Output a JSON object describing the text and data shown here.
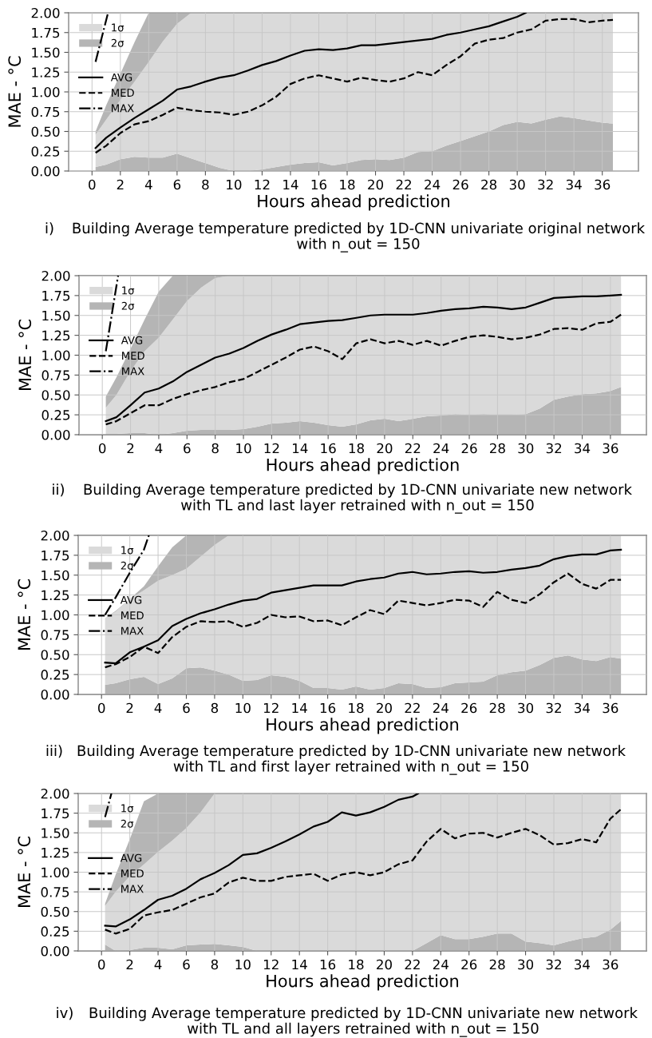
{
  "chart_data": [
    {
      "type": "area",
      "stacked": true,
      "xlabel": "Hours ahead prediction",
      "ylabel": "MAE - °C",
      "annotations": [
        "i)",
        "Building Average temperature predicted by 1D-CNN univariate original network\nwith n_out = 150"
      ],
      "x": [
        0.25,
        1,
        2,
        3,
        4,
        5,
        6,
        7,
        8,
        9,
        10,
        11,
        12,
        13,
        14,
        15,
        16,
        17,
        18,
        19,
        20,
        21,
        22,
        23,
        24,
        25,
        26,
        27,
        28,
        29,
        30,
        31,
        32,
        33,
        34,
        35,
        36,
        36.75
      ],
      "xlim": [
        -1.65,
        38.55
      ],
      "xticks": [
        0,
        2,
        4,
        6,
        8,
        10,
        12,
        14,
        16,
        18,
        20,
        22,
        24,
        26,
        28,
        30,
        32,
        34,
        36
      ],
      "ylim": [
        0,
        2
      ],
      "yticks": [
        {
          "value": 0,
          "label": "0.00"
        },
        0.25,
        {
          "value": 0.5,
          "label": "0.50"
        },
        0.75,
        {
          "value": 1,
          "label": "1.00"
        },
        1.25,
        {
          "value": 1.5,
          "label": "1.50"
        },
        1.75,
        {
          "value": 2,
          "label": "2.00"
        }
      ],
      "grid": true,
      "legend": "top left",
      "series": [
        {
          "name": "2σ",
          "color": "#b5b5b5",
          "values": [
            0.05,
            0.08,
            0.15,
            0.18,
            0.17,
            0.17,
            0.22,
            0.16,
            0.1,
            0.04,
            0,
            0,
            0.02,
            0.05,
            0.08,
            0.1,
            0.11,
            0.07,
            0.1,
            0.14,
            0.15,
            0.14,
            0.17,
            0.24,
            0.25,
            0.32,
            0.38,
            0.44,
            0.5,
            0.58,
            0.62,
            0.6,
            0.65,
            0.69,
            0.67,
            0.64,
            0.61,
            0.6
          ]
        },
        {
          "name": "1σ",
          "color": "#dadada",
          "values": [
            0.41,
            0.57,
            0.75,
            0.95,
            1.21,
            1.47,
            1.64,
            1.84,
            1.9,
            1.96,
            2,
            2,
            1.98,
            1.95,
            1.92,
            1.9,
            1.89,
            1.93,
            1.9,
            1.86,
            1.85,
            1.86,
            1.83,
            1.76,
            1.75,
            1.68,
            1.62,
            1.56,
            1.5,
            1.42,
            1.38,
            1.4,
            1.35,
            1.31,
            1.33,
            1.36,
            1.39,
            1.4
          ]
        },
        {
          "color": "#b5b5b5",
          "values": [
            0.04,
            0.18,
            0.33,
            0.5,
            0.62,
            0.36,
            0.14,
            0,
            null,
            null,
            null,
            null,
            null,
            null,
            null,
            null,
            null,
            null,
            null,
            null,
            null,
            null,
            null,
            null,
            null,
            null,
            null,
            null,
            null,
            null,
            null,
            null,
            null,
            null,
            null,
            null,
            null,
            null
          ]
        },
        {
          "name": "AVG",
          "type": "line",
          "color": "#000000",
          "line_style": "solid",
          "x": [
            0.25,
            1,
            2,
            3,
            4,
            5,
            6,
            7,
            8,
            9,
            10,
            11,
            12,
            13,
            14,
            15,
            16,
            17,
            18,
            19,
            20,
            21,
            22,
            23,
            24,
            25,
            26,
            27,
            28,
            29,
            30,
            30.6
          ],
          "values": [
            0.29,
            0.42,
            0.55,
            0.67,
            0.78,
            0.89,
            1.03,
            1.07,
            1.13,
            1.18,
            1.21,
            1.27,
            1.34,
            1.39,
            1.46,
            1.52,
            1.54,
            1.53,
            1.55,
            1.59,
            1.59,
            1.61,
            1.63,
            1.65,
            1.67,
            1.72,
            1.75,
            1.79,
            1.83,
            1.89,
            1.95,
            2
          ]
        },
        {
          "name": "MED",
          "type": "line",
          "color": "#000000",
          "line_style": "dashed",
          "values": [
            0.23,
            0.32,
            0.48,
            0.59,
            0.63,
            0.71,
            0.8,
            0.77,
            0.75,
            0.74,
            0.71,
            0.75,
            0.83,
            0.94,
            1.1,
            1.17,
            1.21,
            1.17,
            1.13,
            1.18,
            1.15,
            1.13,
            1.17,
            1.25,
            1.21,
            1.34,
            1.45,
            1.61,
            1.66,
            1.68,
            1.75,
            1.79,
            1.9,
            1.92,
            1.92,
            1.88,
            1.9,
            1.91
          ]
        },
        {
          "name": "MAX",
          "type": "line",
          "color": "#000000",
          "line_style": "dashdot",
          "x": [
            0.25,
            1.13
          ],
          "values": [
            1.38,
            2
          ]
        }
      ]
    },
    {
      "type": "area",
      "stacked": true,
      "xlabel": "Hours ahead prediction",
      "ylabel": "MAE - °C",
      "annotations": [
        "ii)",
        "Building Average temperature predicted by 1D-CNN univariate new network\nwith TL and last layer retrained with n_out = 150"
      ],
      "x": [
        0.25,
        1,
        2,
        3,
        4,
        5,
        6,
        7,
        8,
        9,
        10,
        11,
        12,
        13,
        14,
        15,
        16,
        17,
        18,
        19,
        20,
        21,
        22,
        23,
        24,
        25,
        26,
        27,
        28,
        29,
        30,
        31,
        32,
        33,
        34,
        35,
        36,
        36.75
      ],
      "xlim": [
        -1.65,
        38.55
      ],
      "xticks": [
        0,
        2,
        4,
        6,
        8,
        10,
        12,
        14,
        16,
        18,
        20,
        22,
        24,
        26,
        28,
        30,
        32,
        34,
        36
      ],
      "ylim": [
        0,
        2
      ],
      "yticks": [
        {
          "value": 0,
          "label": "0.00"
        },
        0.25,
        {
          "value": 0.5,
          "label": "0.50"
        },
        0.75,
        {
          "value": 1,
          "label": "1.00"
        },
        1.25,
        {
          "value": 1.5,
          "label": "1.50"
        },
        1.75,
        {
          "value": 2,
          "label": "2.00"
        }
      ],
      "grid": true,
      "legend": "top left",
      "series": [
        {
          "name": "2σ",
          "color": "#b5b5b5",
          "values": [
            0.01,
            0.01,
            0.02,
            0.02,
            0,
            0.02,
            0.05,
            0.06,
            0.06,
            0.06,
            0.07,
            0.1,
            0.14,
            0.15,
            0.17,
            0.15,
            0.12,
            0.1,
            0.13,
            0.18,
            0.2,
            0.17,
            0.2,
            0.23,
            0.24,
            0.26,
            0.25,
            0.26,
            0.25,
            0.25,
            0.26,
            0.33,
            0.44,
            0.48,
            0.51,
            0.52,
            0.55,
            0.6
          ]
        },
        {
          "name": "1σ",
          "color": "#dadada",
          "values": [
            0.33,
            0.49,
            0.78,
            1.03,
            1.22,
            1.43,
            1.63,
            1.79,
            1.91,
            1.94,
            1.93,
            1.9,
            1.86,
            1.85,
            1.83,
            1.85,
            1.88,
            1.9,
            1.87,
            1.82,
            1.8,
            1.83,
            1.8,
            1.77,
            1.76,
            1.74,
            1.75,
            1.74,
            1.75,
            1.75,
            1.74,
            1.67,
            1.56,
            1.52,
            1.49,
            1.48,
            1.45,
            1.4
          ]
        },
        {
          "color": "#b5b5b5",
          "values": [
            0.14,
            0.22,
            0.28,
            0.4,
            0.58,
            0.55,
            0.32,
            0.15,
            0.03,
            0,
            null,
            null,
            null,
            null,
            null,
            null,
            null,
            null,
            null,
            null,
            null,
            null,
            null,
            null,
            null,
            null,
            null,
            null,
            null,
            null,
            null,
            null,
            null,
            null,
            null,
            null,
            null,
            null
          ]
        },
        {
          "name": "AVG",
          "type": "line",
          "color": "#000000",
          "line_style": "solid",
          "values": [
            0.17,
            0.22,
            0.37,
            0.53,
            0.58,
            0.67,
            0.79,
            0.88,
            0.97,
            1.02,
            1.09,
            1.18,
            1.26,
            1.32,
            1.39,
            1.41,
            1.43,
            1.44,
            1.47,
            1.5,
            1.51,
            1.51,
            1.51,
            1.53,
            1.56,
            1.58,
            1.59,
            1.61,
            1.6,
            1.58,
            1.6,
            1.66,
            1.72,
            1.73,
            1.74,
            1.74,
            1.75,
            1.76
          ]
        },
        {
          "name": "MED",
          "type": "line",
          "color": "#000000",
          "line_style": "dashed",
          "values": [
            0.13,
            0.17,
            0.27,
            0.37,
            0.37,
            0.45,
            0.51,
            0.56,
            0.6,
            0.66,
            0.7,
            0.79,
            0.88,
            0.97,
            1.07,
            1.11,
            1.05,
            0.95,
            1.15,
            1.2,
            1.15,
            1.18,
            1.13,
            1.18,
            1.12,
            1.18,
            1.23,
            1.25,
            1.23,
            1.2,
            1.22,
            1.26,
            1.33,
            1.34,
            1.32,
            1.4,
            1.42,
            1.51
          ]
        },
        {
          "name": "MAX",
          "type": "line",
          "color": "#000000",
          "line_style": "dashdot",
          "x": [
            0.25,
            1.12
          ],
          "values": [
            1.05,
            2
          ]
        }
      ]
    },
    {
      "type": "area",
      "stacked": true,
      "xlabel": "Hours ahead prediction",
      "ylabel": "MAE - °C",
      "annotations": [
        "iii)",
        "Building Average temperature predicted by 1D-CNN univariate new network\nwith TL and first layer retrained with n_out = 150"
      ],
      "x": [
        0.25,
        1,
        2,
        3,
        4,
        5,
        6,
        7,
        8,
        9,
        10,
        11,
        12,
        13,
        14,
        15,
        16,
        17,
        18,
        19,
        20,
        21,
        22,
        23,
        24,
        25,
        26,
        27,
        28,
        29,
        30,
        31,
        32,
        33,
        34,
        35,
        36,
        36.75
      ],
      "xlim": [
        -1.65,
        38.55
      ],
      "xticks": [
        0,
        2,
        4,
        6,
        8,
        10,
        12,
        14,
        16,
        18,
        20,
        22,
        24,
        26,
        28,
        30,
        32,
        34,
        36
      ],
      "ylim": [
        0,
        2
      ],
      "yticks": [
        {
          "value": 0,
          "label": "0.00"
        },
        0.25,
        {
          "value": 0.5,
          "label": "0.50"
        },
        0.75,
        {
          "value": 1,
          "label": "1.00"
        },
        1.25,
        {
          "value": 1.5,
          "label": "1.50"
        },
        1.75,
        {
          "value": 2,
          "label": "2.00"
        }
      ],
      "grid": true,
      "legend": "top left",
      "series": [
        {
          "name": "2σ",
          "color": "#b5b5b5",
          "values": [
            0.12,
            0.14,
            0.19,
            0.22,
            0.13,
            0.2,
            0.33,
            0.34,
            0.3,
            0.25,
            0.17,
            0.18,
            0.24,
            0.22,
            0.17,
            0.08,
            0.08,
            0.06,
            0.1,
            0.06,
            0.08,
            0.14,
            0.13,
            0.08,
            0.09,
            0.14,
            0.15,
            0.16,
            0.24,
            0.28,
            0.3,
            0.37,
            0.46,
            0.49,
            0.44,
            0.42,
            0.47,
            0.45
          ]
        },
        {
          "name": "1σ",
          "color": "#dadada",
          "values": [
            0.84,
            0.9,
            1.01,
            1.09,
            1.3,
            1.3,
            1.25,
            1.39,
            1.58,
            1.75,
            1.83,
            1.82,
            1.76,
            1.78,
            1.83,
            1.92,
            1.92,
            1.94,
            1.9,
            1.94,
            1.92,
            1.86,
            1.87,
            1.92,
            1.91,
            1.86,
            1.85,
            1.84,
            1.76,
            1.72,
            1.7,
            1.63,
            1.54,
            1.51,
            1.56,
            1.58,
            1.53,
            1.55
          ]
        },
        {
          "color": "#b5b5b5",
          "values": [
            0,
            0.01,
            0,
            0.05,
            0.18,
            0.35,
            0.42,
            0.27,
            0.12,
            0,
            null,
            null,
            null,
            null,
            null,
            null,
            null,
            null,
            null,
            null,
            null,
            null,
            null,
            null,
            null,
            null,
            null,
            null,
            null,
            null,
            null,
            null,
            null,
            null,
            null,
            null,
            null,
            null
          ]
        },
        {
          "name": "AVG",
          "type": "line",
          "color": "#000000",
          "line_style": "solid",
          "values": [
            0.4,
            0.39,
            0.53,
            0.6,
            0.68,
            0.86,
            0.95,
            1.02,
            1.07,
            1.13,
            1.18,
            1.2,
            1.28,
            1.31,
            1.34,
            1.37,
            1.37,
            1.37,
            1.42,
            1.45,
            1.47,
            1.52,
            1.54,
            1.51,
            1.52,
            1.54,
            1.55,
            1.53,
            1.54,
            1.57,
            1.59,
            1.62,
            1.7,
            1.74,
            1.76,
            1.76,
            1.81,
            1.82
          ]
        },
        {
          "name": "MED",
          "type": "line",
          "color": "#000000",
          "line_style": "dashed",
          "values": [
            0.34,
            0.38,
            0.47,
            0.6,
            0.52,
            0.72,
            0.85,
            0.92,
            0.91,
            0.92,
            0.85,
            0.9,
            1.0,
            0.97,
            0.98,
            0.92,
            0.93,
            0.87,
            0.97,
            1.06,
            1.01,
            1.18,
            1.15,
            1.12,
            1.15,
            1.19,
            1.18,
            1.1,
            1.29,
            1.19,
            1.15,
            1.26,
            1.41,
            1.52,
            1.39,
            1.33,
            1.44,
            1.44
          ]
        },
        {
          "name": "MAX",
          "type": "line",
          "color": "#000000",
          "line_style": "dashdot",
          "x": [
            0.25,
            1,
            2,
            3,
            3.35
          ],
          "values": [
            1.0,
            1.22,
            1.53,
            1.82,
            2
          ]
        }
      ]
    },
    {
      "type": "area",
      "stacked": true,
      "xlabel": "Hours ahead prediction",
      "ylabel": "MAE - °C",
      "annotations": [
        "iv)",
        "Building Average temperature predicted by 1D-CNN univariate new network\nwith TL and all layers retrained with n_out = 150"
      ],
      "x": [
        0.25,
        1,
        2,
        3,
        4,
        5,
        6,
        7,
        8,
        9,
        10,
        11,
        12,
        13,
        14,
        15,
        16,
        17,
        18,
        19,
        20,
        21,
        22,
        23,
        24,
        25,
        26,
        27,
        28,
        29,
        30,
        31,
        32,
        33,
        34,
        35,
        36,
        36.75
      ],
      "xlim": [
        -1.65,
        38.55
      ],
      "xticks": [
        0,
        2,
        4,
        6,
        8,
        10,
        12,
        14,
        16,
        18,
        20,
        22,
        24,
        26,
        28,
        30,
        32,
        34,
        36
      ],
      "ylim": [
        0,
        2
      ],
      "yticks": [
        {
          "value": 0,
          "label": "0.00"
        },
        0.25,
        {
          "value": 0.5,
          "label": "0.50"
        },
        0.75,
        {
          "value": 1,
          "label": "1.00"
        },
        1.25,
        {
          "value": 1.5,
          "label": "1.50"
        },
        1.75,
        {
          "value": 2,
          "label": "2.00"
        }
      ],
      "grid": true,
      "legend": "top left",
      "series": [
        {
          "name": "2σ",
          "color": "#b5b5b5",
          "values": [
            0.08,
            0,
            0.01,
            0.04,
            0.04,
            0.02,
            0.07,
            0.08,
            0.09,
            0.07,
            0.05,
            0,
            0,
            0,
            0,
            0,
            0,
            0,
            0,
            0,
            0,
            0,
            0,
            0.1,
            0.2,
            0.15,
            0.15,
            0.18,
            0.22,
            0.22,
            0.12,
            0.1,
            0.07,
            0.12,
            0.16,
            0.18,
            0.27,
            0.38
          ]
        },
        {
          "name": "1σ",
          "color": "#dadada",
          "values": [
            0.49,
            0.75,
            0.94,
            1.06,
            1.22,
            1.38,
            1.49,
            1.68,
            1.91,
            1.93,
            1.95,
            2,
            2,
            2,
            2,
            2,
            2,
            2,
            2,
            2,
            2,
            2,
            2,
            1.9,
            1.8,
            1.85,
            1.85,
            1.82,
            1.78,
            1.78,
            1.88,
            1.9,
            1.93,
            1.88,
            1.84,
            1.82,
            1.73,
            1.62
          ]
        },
        {
          "color": "#b5b5b5",
          "values": [
            0.03,
            0.22,
            0.47,
            0.8,
            0.74,
            0.6,
            0.44,
            0.24,
            0,
            null,
            null,
            null,
            null,
            null,
            null,
            null,
            null,
            null,
            null,
            null,
            null,
            null,
            null,
            null,
            null,
            null,
            null,
            null,
            null,
            null,
            null,
            null,
            null,
            null,
            null,
            null,
            null,
            null
          ]
        },
        {
          "name": "AVG",
          "type": "line",
          "color": "#000000",
          "line_style": "solid",
          "x": [
            0.25,
            1,
            2,
            3,
            4,
            5,
            6,
            7,
            8,
            9,
            10,
            11,
            12,
            13,
            14,
            15,
            16,
            17,
            18,
            19,
            20,
            21,
            22,
            22.4
          ],
          "values": [
            0.32,
            0.31,
            0.4,
            0.52,
            0.65,
            0.7,
            0.79,
            0.91,
            0.99,
            1.09,
            1.22,
            1.24,
            1.31,
            1.39,
            1.48,
            1.58,
            1.64,
            1.76,
            1.72,
            1.76,
            1.83,
            1.92,
            1.96,
            2
          ]
        },
        {
          "name": "MED",
          "type": "line",
          "color": "#000000",
          "line_style": "dashed",
          "values": [
            0.27,
            0.22,
            0.28,
            0.45,
            0.49,
            0.52,
            0.6,
            0.68,
            0.73,
            0.87,
            0.93,
            0.89,
            0.89,
            0.94,
            0.96,
            0.98,
            0.89,
            0.97,
            1.0,
            0.96,
            1.0,
            1.1,
            1.15,
            1.39,
            1.55,
            1.43,
            1.49,
            1.5,
            1.44,
            1.5,
            1.55,
            1.47,
            1.35,
            1.37,
            1.42,
            1.38,
            1.68,
            1.8
          ]
        },
        {
          "name": "MAX",
          "type": "line",
          "color": "#000000",
          "line_style": "dashdot",
          "x": [
            0.25,
            0.7
          ],
          "values": [
            1.7,
            2
          ]
        }
      ]
    }
  ]
}
